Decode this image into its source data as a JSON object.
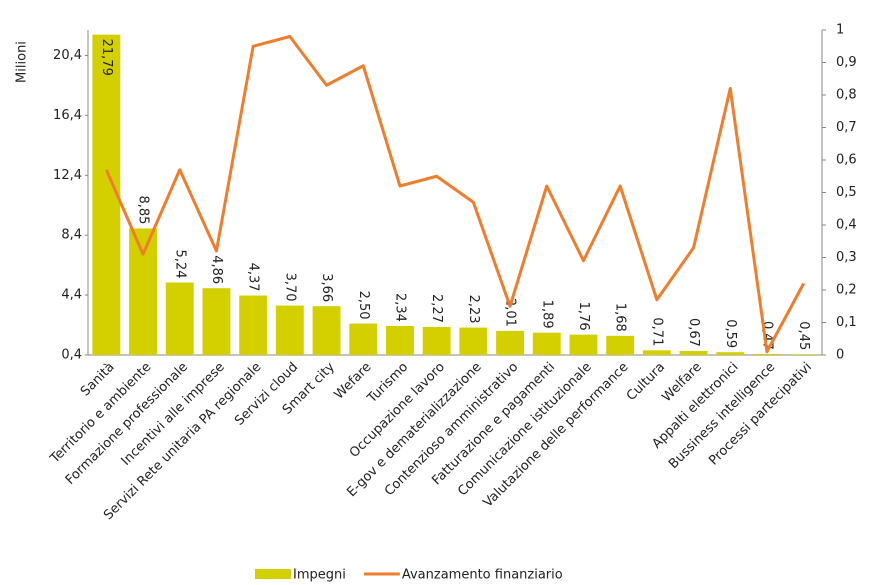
{
  "chart_data": {
    "type": "bar_line",
    "y_label": "Milioni",
    "categories": [
      "Sanità",
      "Territorio e ambiente",
      "Formazione professionale",
      "Incentivi alle imprese",
      "Servizi Rete unitaria PA regionale",
      "Servizi cloud",
      "Smart city",
      "Wefare",
      "Turismo",
      "Occupazione lavoro",
      "E-gov e dematerializzazione",
      "Contenzioso amministrativo",
      "Fatturazione e pagamenti",
      "Comunicazione istituzionale",
      "Valutazione delle performance",
      "Cultura",
      "Welfare",
      "Appalti elettronici",
      "Bussiness intelligence",
      "Processi partecipativi"
    ],
    "series": [
      {
        "name": "Impegni",
        "type": "bar",
        "color": "#d4d000",
        "values": [
          21.79,
          8.85,
          5.24,
          4.86,
          4.37,
          3.7,
          3.66,
          2.5,
          2.34,
          2.27,
          2.23,
          2.01,
          1.89,
          1.76,
          1.68,
          0.71,
          0.67,
          0.59,
          0.47,
          0.45
        ],
        "value_labels": [
          "21,79",
          "8,85",
          "5,24",
          "4,86",
          "4,37",
          "3,70",
          "3,66",
          "2,50",
          "2,34",
          "2,27",
          "2,23",
          "2,01",
          "1,89",
          "1,76",
          "1,68",
          "0,71",
          "0,67",
          "0,59",
          "0,47",
          "0,45"
        ]
      },
      {
        "name": "Avanzamento finanziario",
        "type": "line",
        "axis": "y2",
        "color": "#f07d2c",
        "values": [
          0.57,
          0.31,
          0.57,
          0.32,
          0.95,
          0.98,
          0.83,
          0.89,
          0.52,
          0.55,
          0.47,
          0.15,
          0.52,
          0.29,
          0.52,
          0.17,
          0.33,
          0.82,
          0.01,
          0.22
        ]
      }
    ],
    "ylim": [
      0.4,
      22.1
    ],
    "yticks": [
      {
        "value": 0.4,
        "label": "0,4"
      },
      {
        "value": 4.4,
        "label": "4,4"
      },
      {
        "value": 8.4,
        "label": "8,4"
      },
      {
        "value": 12.4,
        "label": "12,4"
      },
      {
        "value": 16.4,
        "label": "16,4"
      },
      {
        "value": 20.4,
        "label": "20,4"
      }
    ],
    "y2lim": [
      0,
      1
    ],
    "y2ticks": [
      0,
      {
        "value": 0.1,
        "label": "0,1"
      },
      {
        "value": 0.2,
        "label": "0,2"
      },
      {
        "value": 0.3,
        "label": "0,3"
      },
      {
        "value": 0.4,
        "label": "0,4"
      },
      {
        "value": 0.5,
        "label": "0,5"
      },
      {
        "value": 0.6,
        "label": "0,6"
      },
      {
        "value": 0.7,
        "label": "0,7"
      },
      {
        "value": 0.8,
        "label": "0,8"
      },
      {
        "value": 0.9,
        "label": "0,9"
      },
      1
    ],
    "legend": "bottom"
  }
}
